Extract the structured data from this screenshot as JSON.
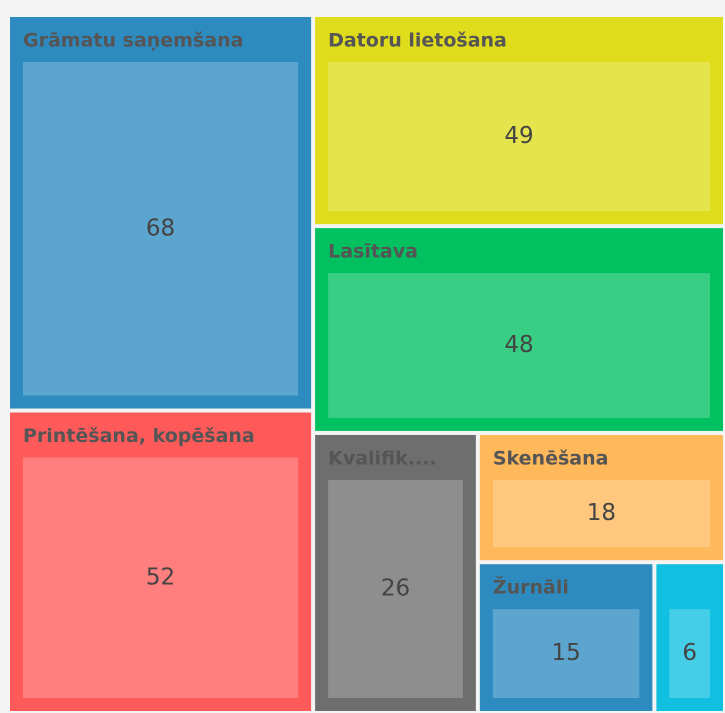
{
  "chart_data": {
    "type": "treemap",
    "categories": [
      "Grāmatu saņemšana",
      "Printēšana, kopēšana",
      "Datoru lietošana",
      "Lasītava",
      "Kvalifik....",
      "Skenēšana",
      "Žurnāli",
      null
    ],
    "values": [
      68,
      52,
      49,
      48,
      26,
      18,
      15,
      6
    ],
    "colors": [
      "#2e8bc0",
      "#ff5a5a",
      "#dfdc1b",
      "#00c060",
      "#6e6e6e",
      "#ffb85a",
      "#2e8bc0",
      "#11c0e0"
    ]
  }
}
